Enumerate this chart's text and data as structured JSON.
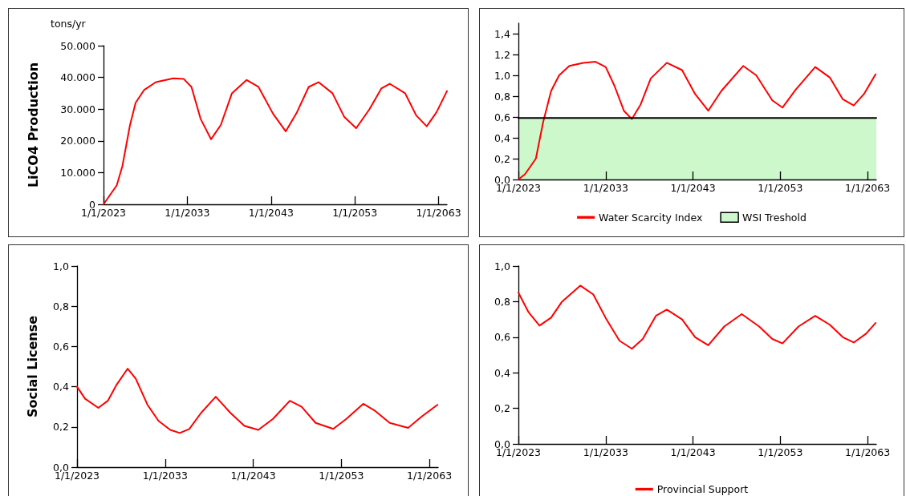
{
  "chart_data": [
    {
      "type": "line",
      "ylabel": "LiCO4 Production",
      "annotations": [
        "tons/yr"
      ],
      "xlim": [
        "2023-01-01",
        "2064-01-01"
      ],
      "xticks": [
        {
          "value": "2023-01-01",
          "label": "1/1/2023"
        },
        {
          "value": "2033-01-01",
          "label": "1/1/2033"
        },
        {
          "value": "2043-01-01",
          "label": "1/1/2043"
        },
        {
          "value": "2053-01-01",
          "label": "1/1/2053"
        },
        {
          "value": "2063-01-01",
          "label": "1/1/2063"
        }
      ],
      "ylim": [
        0,
        50000
      ],
      "yticks": [
        0,
        {
          "value": 10000,
          "label": "10.000"
        },
        {
          "value": 20000,
          "label": "20.000"
        },
        {
          "value": 30000,
          "label": "30.000"
        },
        {
          "value": 40000,
          "label": "40.000"
        },
        {
          "value": 50000,
          "label": "50.000"
        }
      ],
      "x": [
        "2023-01",
        "2024-08",
        "2025-04",
        "2026-03",
        "2026-11",
        "2027-11",
        "2029-04",
        "2031-05",
        "2032-08",
        "2033-07",
        "2034-08",
        "2035-11",
        "2037-01",
        "2038-05",
        "2040-02",
        "2041-07",
        "2043-04",
        "2044-10",
        "2046-02",
        "2047-07",
        "2048-09",
        "2050-05",
        "2051-10",
        "2053-03",
        "2054-10",
        "2056-03",
        "2057-03",
        "2059-01",
        "2060-05",
        "2061-08",
        "2062-10",
        "2064-01"
      ],
      "series": [
        {
          "color": "#ff0000",
          "values": [
            0,
            6000,
            12000,
            25000,
            32000,
            36000,
            38500,
            39700,
            39500,
            37000,
            27000,
            20500,
            25000,
            35000,
            39200,
            37000,
            28500,
            23000,
            29000,
            37000,
            38500,
            35000,
            27500,
            24000,
            30000,
            36500,
            38000,
            35000,
            28000,
            24600,
            29000,
            35700
          ]
        }
      ]
    },
    {
      "type": "line",
      "legend": "bottom",
      "xlim": [
        "2023-01-01",
        "2064-01-01"
      ],
      "xticks": [
        {
          "value": "2023-01-01",
          "label": "1/1/2023"
        },
        {
          "value": "2033-01-01",
          "label": "1/1/2033"
        },
        {
          "value": "2043-01-01",
          "label": "1/1/2043"
        },
        {
          "value": "2053-01-01",
          "label": "1/1/2053"
        },
        {
          "value": "2063-01-01",
          "label": "1/1/2063"
        }
      ],
      "ylim": [
        0,
        1.5
      ],
      "yticks": [
        {
          "value": 0,
          "label": "0,0"
        },
        {
          "value": 0.2,
          "label": "0,2"
        },
        {
          "value": 0.4,
          "label": "0,4"
        },
        {
          "value": 0.6,
          "label": "0,6"
        },
        {
          "value": 0.8,
          "label": "0,8"
        },
        {
          "value": 1.0,
          "label": "1,0"
        },
        {
          "value": 1.2,
          "label": "1,2"
        },
        {
          "value": 1.4,
          "label": "1,4"
        }
      ],
      "bands": [
        {
          "axis": "y",
          "from": 0,
          "to": 0.59,
          "color": "#ccf8cc"
        }
      ],
      "series": [
        {
          "name": "Water Scarcity Index",
          "color": "#ff0000",
          "x": [
            "2023-01",
            "2023-10",
            "2025-01",
            "2025-11",
            "2026-10",
            "2027-09",
            "2028-11",
            "2030-06",
            "2031-11",
            "2033-01",
            "2034-01",
            "2035-02",
            "2036-01",
            "2037-01",
            "2038-03",
            "2040-01",
            "2041-10",
            "2043-04",
            "2044-10",
            "2046-04",
            "2048-10",
            "2050-04",
            "2052-02",
            "2053-04",
            "2054-10",
            "2057-01",
            "2058-09",
            "2060-03",
            "2061-06",
            "2062-08",
            "2063-12"
          ],
          "values": [
            0,
            0.05,
            0.2,
            0.55,
            0.85,
            1.0,
            1.09,
            1.12,
            1.13,
            1.08,
            0.9,
            0.66,
            0.58,
            0.72,
            0.97,
            1.12,
            1.05,
            0.82,
            0.66,
            0.85,
            1.09,
            1.0,
            0.76,
            0.69,
            0.86,
            1.08,
            0.98,
            0.77,
            0.71,
            0.82,
            1.01
          ]
        },
        {
          "name": "WSI Treshold",
          "color": "#000000",
          "x": [
            "2023-01",
            "2064-01"
          ],
          "values": [
            0.59,
            0.59
          ]
        }
      ]
    },
    {
      "type": "line",
      "ylabel": "Social License",
      "xlim": [
        "2023-01-01",
        "2064-01-01"
      ],
      "xticks": [
        {
          "value": "2023-01-01",
          "label": "1/1/2023"
        },
        {
          "value": "2033-01-01",
          "label": "1/1/2033"
        },
        {
          "value": "2043-01-01",
          "label": "1/1/2043"
        },
        {
          "value": "2053-01-01",
          "label": "1/1/2053"
        },
        {
          "value": "2063-01-01",
          "label": "1/1/2063"
        }
      ],
      "ylim": [
        0,
        1
      ],
      "yticks": [
        {
          "value": 0,
          "label": "0,0"
        },
        {
          "value": 0.2,
          "label": "0,2"
        },
        {
          "value": 0.4,
          "label": "0,4"
        },
        {
          "value": 0.6,
          "label": "0,6"
        },
        {
          "value": 0.8,
          "label": "0,8"
        },
        {
          "value": 1.0,
          "label": "1,0"
        }
      ],
      "x": [
        "2023-01",
        "2023-12",
        "2025-06",
        "2026-07",
        "2027-07",
        "2028-10",
        "2029-09",
        "2031-01",
        "2032-04",
        "2033-08",
        "2034-09",
        "2035-10",
        "2037-02",
        "2038-10",
        "2040-06",
        "2042-01",
        "2043-08",
        "2045-04",
        "2047-03",
        "2048-07",
        "2050-02",
        "2052-02",
        "2053-08",
        "2055-07",
        "2056-11",
        "2058-07",
        "2060-08",
        "2062-02",
        "2063-12"
      ],
      "series": [
        {
          "color": "#ff0000",
          "values": [
            0.4,
            0.34,
            0.295,
            0.33,
            0.41,
            0.49,
            0.44,
            0.31,
            0.23,
            0.185,
            0.17,
            0.19,
            0.27,
            0.35,
            0.27,
            0.205,
            0.185,
            0.24,
            0.33,
            0.3,
            0.22,
            0.19,
            0.24,
            0.315,
            0.28,
            0.22,
            0.195,
            0.25,
            0.31
          ]
        }
      ]
    },
    {
      "type": "line",
      "legend": "bottom",
      "xlim": [
        "2023-01-01",
        "2064-01-01"
      ],
      "xticks": [
        {
          "value": "2023-01-01",
          "label": "1/1/2023"
        },
        {
          "value": "2033-01-01",
          "label": "1/1/2033"
        },
        {
          "value": "2043-01-01",
          "label": "1/1/2043"
        },
        {
          "value": "2053-01-01",
          "label": "1/1/2053"
        },
        {
          "value": "2063-01-01",
          "label": "1/1/2063"
        }
      ],
      "ylim": [
        0,
        1
      ],
      "yticks": [
        {
          "value": 0,
          "label": "0,0"
        },
        {
          "value": 0.2,
          "label": "0,2"
        },
        {
          "value": 0.4,
          "label": "0,4"
        },
        {
          "value": 0.6,
          "label": "0,6"
        },
        {
          "value": 0.8,
          "label": "0,8"
        },
        {
          "value": 1.0,
          "label": "1,0"
        }
      ],
      "x": [
        "2023-01",
        "2024-03",
        "2025-06",
        "2026-10",
        "2028-01",
        "2030-02",
        "2031-08",
        "2033-02",
        "2034-08",
        "2036-01",
        "2037-04",
        "2038-10",
        "2040-01",
        "2041-10",
        "2043-04",
        "2044-10",
        "2046-08",
        "2048-08",
        "2050-08",
        "2052-02",
        "2053-04",
        "2055-02",
        "2057-01",
        "2058-09",
        "2060-03",
        "2061-06",
        "2062-11",
        "2063-12"
      ],
      "series": [
        {
          "name": "Provincial Support",
          "color": "#ff0000",
          "values": [
            0.85,
            0.74,
            0.665,
            0.71,
            0.8,
            0.89,
            0.84,
            0.7,
            0.58,
            0.535,
            0.59,
            0.72,
            0.755,
            0.7,
            0.6,
            0.555,
            0.66,
            0.73,
            0.66,
            0.59,
            0.565,
            0.66,
            0.72,
            0.67,
            0.6,
            0.57,
            0.62,
            0.68
          ]
        }
      ]
    }
  ]
}
